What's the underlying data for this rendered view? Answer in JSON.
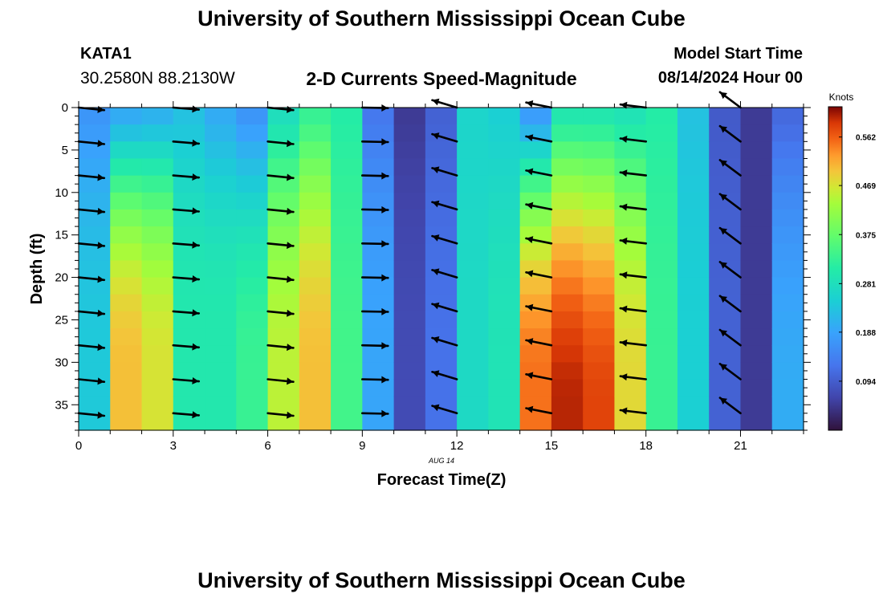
{
  "page": {
    "title_top": "University of Southern Mississippi Ocean Cube",
    "title_bottom": "University of Southern Mississippi Ocean Cube",
    "station": "KATA1",
    "coords": "30.2580N  88.2130W",
    "plot_title": "2-D Currents Speed-Magnitude",
    "model_start_label": "Model Start Time",
    "model_start_value": "08/14/2024 Hour 00"
  },
  "chart_data": {
    "type": "heatmap",
    "title": "2-D Currents Speed-Magnitude",
    "xlabel": "Forecast Time(Z)",
    "ylabel": "Depth (ft)",
    "date_label": "AUG 14",
    "xlim": [
      0,
      23
    ],
    "ylim": [
      38,
      0
    ],
    "xticks": [
      "0",
      "3",
      "6",
      "9",
      "12",
      "15",
      "18",
      "21"
    ],
    "yticks": [
      "0",
      "5",
      "10",
      "15",
      "20",
      "25",
      "30",
      "35"
    ],
    "colorbar": {
      "label": "Knots",
      "ticks": [
        "0.562",
        "0.469",
        "0.375",
        "0.281",
        "0.188",
        "0.094"
      ],
      "range": [
        0.0,
        0.62
      ]
    },
    "columns": [
      {
        "hour": 0,
        "surface": 0.17,
        "peak": 0.24,
        "peak_depth": 30
      },
      {
        "hour": 1,
        "surface": 0.2,
        "peak": 0.5,
        "peak_depth": 30
      },
      {
        "hour": 2,
        "surface": 0.21,
        "peak": 0.47,
        "peak_depth": 30
      },
      {
        "hour": 3,
        "surface": 0.23,
        "peak": 0.3,
        "peak_depth": 25
      },
      {
        "hour": 4,
        "surface": 0.2,
        "peak": 0.3,
        "peak_depth": 25
      },
      {
        "hour": 5,
        "surface": 0.17,
        "peak": 0.33,
        "peak_depth": 30
      },
      {
        "hour": 6,
        "surface": 0.28,
        "peak": 0.45,
        "peak_depth": 30
      },
      {
        "hour": 7,
        "surface": 0.33,
        "peak": 0.5,
        "peak_depth": 30
      },
      {
        "hour": 8,
        "surface": 0.31,
        "peak": 0.34,
        "peak_depth": 30
      },
      {
        "hour": 9,
        "surface": 0.13,
        "peak": 0.19,
        "peak_depth": 30
      },
      {
        "hour": 10,
        "surface": 0.05,
        "peak": 0.07,
        "peak_depth": 30
      },
      {
        "hour": 11,
        "surface": 0.1,
        "peak": 0.12,
        "peak_depth": 30
      },
      {
        "hour": 12,
        "surface": 0.26,
        "peak": 0.27,
        "peak_depth": 30
      },
      {
        "hour": 13,
        "surface": 0.25,
        "peak": 0.29,
        "peak_depth": 30
      },
      {
        "hour": 14,
        "surface": 0.18,
        "peak": 0.55,
        "peak_depth": 32
      },
      {
        "hour": 15,
        "surface": 0.3,
        "peak": 0.6,
        "peak_depth": 35
      },
      {
        "hour": 16,
        "surface": 0.3,
        "peak": 0.58,
        "peak_depth": 35
      },
      {
        "hour": 17,
        "surface": 0.29,
        "peak": 0.48,
        "peak_depth": 32
      },
      {
        "hour": 18,
        "surface": 0.31,
        "peak": 0.33,
        "peak_depth": 30
      },
      {
        "hour": 19,
        "surface": 0.23,
        "peak": 0.25,
        "peak_depth": 30
      },
      {
        "hour": 20,
        "surface": 0.09,
        "peak": 0.1,
        "peak_depth": 30
      },
      {
        "hour": 21,
        "surface": 0.05,
        "peak": 0.05,
        "peak_depth": 30
      },
      {
        "hour": 22,
        "surface": 0.11,
        "peak": 0.2,
        "peak_depth": 35
      }
    ],
    "vectors": {
      "depths": [
        0,
        4,
        8,
        12,
        16,
        20,
        24,
        28,
        32,
        36
      ],
      "hours": [
        {
          "hour": 0,
          "dx": 1,
          "dy": 0.1
        },
        {
          "hour": 3,
          "dx": 1,
          "dy": 0.08
        },
        {
          "hour": 6,
          "dx": 1,
          "dy": 0.1
        },
        {
          "hour": 9,
          "dx": 1,
          "dy": 0.02
        },
        {
          "hour": 12,
          "dx": -1,
          "dy": -0.3
        },
        {
          "hour": 15,
          "dx": -1,
          "dy": -0.2
        },
        {
          "hour": 18,
          "dx": -1,
          "dy": -0.12
        },
        {
          "hour": 21,
          "dx": -0.8,
          "dy": -0.6
        }
      ]
    }
  }
}
